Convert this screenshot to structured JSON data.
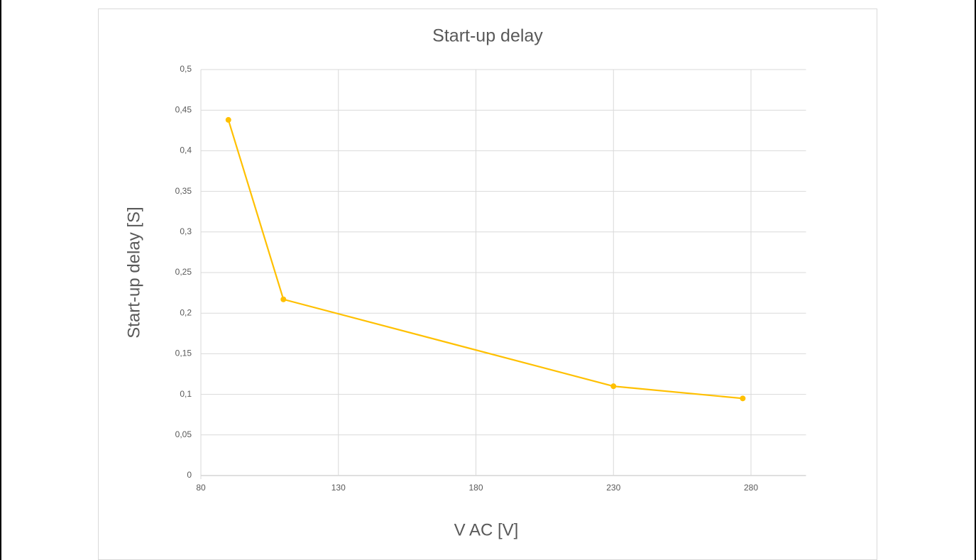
{
  "chart_data": {
    "type": "line",
    "title": "Start-up delay",
    "x_label": "V AC [V]",
    "y_label": "Start-up delay [S]",
    "x": [
      90,
      110,
      230,
      277
    ],
    "values": [
      0.438,
      0.217,
      0.11,
      0.095
    ],
    "color": "#ffc000",
    "xlim": [
      80,
      300
    ],
    "xticks": [
      80,
      130,
      180,
      230,
      280
    ],
    "ylim": [
      0,
      0.5
    ],
    "yticks": [
      0,
      {
        "value": 0.05,
        "label": "0,05"
      },
      {
        "value": 0.1,
        "label": "0,1"
      },
      {
        "value": 0.15,
        "label": "0,15"
      },
      {
        "value": 0.2,
        "label": "0,2"
      },
      {
        "value": 0.25,
        "label": "0,25"
      },
      {
        "value": 0.3,
        "label": "0,3"
      },
      {
        "value": 0.35,
        "label": "0,35"
      },
      {
        "value": 0.4,
        "label": "0,4"
      },
      {
        "value": 0.45,
        "label": "0,45"
      },
      {
        "value": 0.5,
        "label": "0,5"
      }
    ],
    "grid": true
  }
}
